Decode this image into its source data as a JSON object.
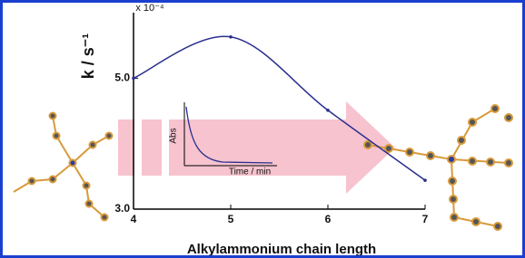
{
  "chart_data": {
    "type": "line",
    "x_label": "Alkylammonium chain length",
    "y_label": "k / s⁻¹",
    "y_multiplier": "x 10⁻⁴",
    "x": [
      4,
      5,
      6,
      7
    ],
    "values": [
      5.0,
      5.63,
      4.51,
      3.44
    ],
    "color": "#2a2f8f",
    "xlim": [
      4,
      7
    ],
    "xticks": [
      4,
      5,
      6,
      7
    ],
    "ylim": [
      3.0,
      6.0
    ],
    "yticks": [
      {
        "value": 5.0,
        "label": "5.0"
      },
      {
        "value": 3.0,
        "label": "3.0"
      }
    ],
    "inset": {
      "y_label": "Abs",
      "x_label": "Time / min"
    }
  }
}
